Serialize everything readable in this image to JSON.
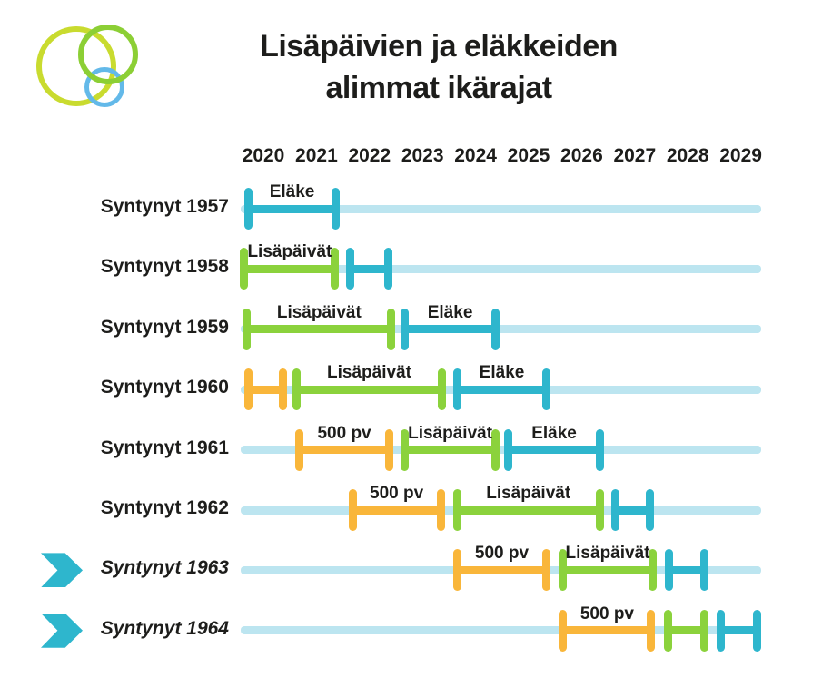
{
  "canvas": {
    "background": "#ffffff"
  },
  "title": {
    "line1": "Lisäpäivien ja eläkkeiden",
    "line2": "alimmat ikärajat"
  },
  "logo": {
    "description": "three-overlapping-circles-logo",
    "circles": [
      {
        "name": "yellow-green-circle",
        "color": "#c9db2f"
      },
      {
        "name": "blue-circle",
        "color": "#63b9e9"
      },
      {
        "name": "green-circle",
        "color": "#8ccf35"
      }
    ]
  },
  "colors": {
    "teal": "#2eb6cd",
    "green": "#8bd23c",
    "orange": "#f9b63a",
    "track": "#bce5f0",
    "text": "#1d1d1b"
  },
  "chart_data": {
    "type": "bar",
    "subtype": "horizontal-gantt-timeline",
    "title": "Lisäpäivien ja eläkkeiden alimmat ikärajat",
    "xlabel": "",
    "ylabel": "",
    "grid": false,
    "legend_position": "none (labels shown above segments)",
    "x_ticks": [
      2020,
      2021,
      2022,
      2023,
      2024,
      2025,
      2026,
      2027,
      2028,
      2029
    ],
    "x_range": [
      2019.55,
      2029.4
    ],
    "segment_palette": {
      "500pv": "orange",
      "lisapaivat": "green",
      "elake": "teal"
    },
    "rows": [
      {
        "label": "Syntynyt 1957",
        "highlight": false,
        "segments": [
          {
            "kind": "elake",
            "label": "Eläke",
            "start": 2019.72,
            "end": 2021.36
          }
        ]
      },
      {
        "label": "Syntynyt 1958",
        "highlight": false,
        "segments": [
          {
            "kind": "lisapaivat",
            "label": "Lisäpäivät",
            "start": 2019.64,
            "end": 2021.35
          },
          {
            "kind": "elake",
            "label": "",
            "start": 2021.64,
            "end": 2022.35
          }
        ]
      },
      {
        "label": "Syntynyt 1959",
        "highlight": false,
        "segments": [
          {
            "kind": "lisapaivat",
            "label": "Lisäpäivät",
            "start": 2019.69,
            "end": 2022.41
          },
          {
            "kind": "elake",
            "label": "Eläke",
            "start": 2022.67,
            "end": 2024.37
          }
        ]
      },
      {
        "label": "Syntynyt 1960",
        "highlight": false,
        "segments": [
          {
            "kind": "500pv",
            "label": "",
            "start": 2019.71,
            "end": 2020.36
          },
          {
            "kind": "lisapaivat",
            "label": "Lisäpäivät",
            "start": 2020.63,
            "end": 2023.36
          },
          {
            "kind": "elake",
            "label": "Eläke",
            "start": 2023.65,
            "end": 2025.34
          }
        ]
      },
      {
        "label": "Syntynyt 1961",
        "highlight": false,
        "segments": [
          {
            "kind": "500pv",
            "label": "500 pv",
            "start": 2020.67,
            "end": 2022.38
          },
          {
            "kind": "lisapaivat",
            "label": "Lisäpäivät",
            "start": 2022.67,
            "end": 2024.37
          },
          {
            "kind": "elake",
            "label": "Eläke",
            "start": 2024.62,
            "end": 2026.34
          }
        ]
      },
      {
        "label": "Syntynyt 1962",
        "highlight": false,
        "segments": [
          {
            "kind": "500pv",
            "label": "500 pv",
            "start": 2021.68,
            "end": 2023.34
          },
          {
            "kind": "lisapaivat",
            "label": "Lisäpäivät",
            "start": 2023.65,
            "end": 2026.34
          },
          {
            "kind": "elake",
            "label": "",
            "start": 2026.63,
            "end": 2027.29
          }
        ]
      },
      {
        "label": "Syntynyt 1963",
        "highlight": true,
        "segments": [
          {
            "kind": "500pv",
            "label": "500 pv",
            "start": 2023.65,
            "end": 2025.34
          },
          {
            "kind": "lisapaivat",
            "label": "Lisäpäivät",
            "start": 2025.65,
            "end": 2027.33
          },
          {
            "kind": "elake",
            "label": "",
            "start": 2027.64,
            "end": 2028.32
          }
        ]
      },
      {
        "label": "Syntynyt 1964",
        "highlight": true,
        "segments": [
          {
            "kind": "500pv",
            "label": "500 pv",
            "start": 2025.65,
            "end": 2027.31
          },
          {
            "kind": "lisapaivat",
            "label": "",
            "start": 2027.62,
            "end": 2028.32
          },
          {
            "kind": "elake",
            "label": "",
            "start": 2028.63,
            "end": 2029.3
          }
        ]
      }
    ]
  }
}
